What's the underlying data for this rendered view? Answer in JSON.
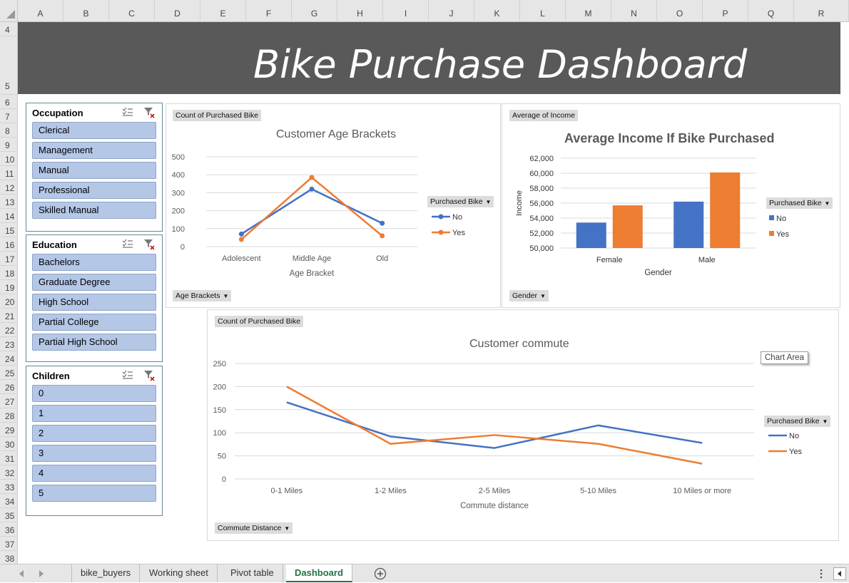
{
  "sheet": {
    "columns": [
      "A",
      "B",
      "C",
      "D",
      "E",
      "F",
      "G",
      "H",
      "I",
      "J",
      "K",
      "L",
      "M",
      "N",
      "O",
      "P",
      "Q",
      "R"
    ],
    "rows": [
      "4",
      "5",
      "6",
      "7",
      "8",
      "9",
      "10",
      "11",
      "12",
      "13",
      "14",
      "15",
      "16",
      "17",
      "18",
      "19",
      "20",
      "21",
      "22",
      "23",
      "24",
      "25",
      "26",
      "27",
      "28",
      "29",
      "30",
      "31",
      "32",
      "33",
      "34",
      "35",
      "36",
      "37",
      "38"
    ]
  },
  "dashboard": {
    "title": "Bike Purchase Dashboard",
    "header_bg": "#595959"
  },
  "slicers": [
    {
      "title": "Occupation",
      "items": [
        "Clerical",
        "Management",
        "Manual",
        "Professional",
        "Skilled Manual"
      ]
    },
    {
      "title": "Education",
      "items": [
        "Bachelors",
        "Graduate Degree",
        "High School",
        "Partial College",
        "Partial High School"
      ]
    },
    {
      "title": "Children",
      "items": [
        "0",
        "1",
        "2",
        "3",
        "4",
        "5"
      ]
    }
  ],
  "charts": {
    "age": {
      "value_button": "Count of Purchased Bike",
      "axis_button": "Age Brackets",
      "legend_button": "Purchased Bike",
      "legend": [
        "No",
        "Yes"
      ]
    },
    "income": {
      "value_button": "Average of Income",
      "axis_button": "Gender",
      "legend_button": "Purchased Bike",
      "legend": [
        "No",
        "Yes"
      ]
    },
    "commute": {
      "value_button": "Count of Purchased Bike",
      "axis_button": "Commute Distance",
      "legend_button": "Purchased Bike",
      "legend": [
        "No",
        "Yes"
      ],
      "tooltip": "Chart Area"
    }
  },
  "colors": {
    "no": "#4472c4",
    "yes": "#ed7d31",
    "slicer_item": "#b4c7e7"
  },
  "chart_data": [
    {
      "type": "line",
      "title": "Customer Age Brackets",
      "xlabel": "Age Bracket",
      "ylabel": "",
      "categories": [
        "Adolescent",
        "Middle Age",
        "Old"
      ],
      "series": [
        {
          "name": "No",
          "values": [
            70,
            320,
            130
          ]
        },
        {
          "name": "Yes",
          "values": [
            40,
            385,
            60
          ]
        }
      ],
      "ylim": [
        0,
        500
      ],
      "yticks": [
        "0",
        "100",
        "200",
        "300",
        "400",
        "500"
      ]
    },
    {
      "type": "bar",
      "title": "Average Income If Bike Purchased",
      "xlabel": "Gender",
      "ylabel": "Income",
      "categories": [
        "Female",
        "Male"
      ],
      "series": [
        {
          "name": "No",
          "values": [
            53400,
            56200
          ]
        },
        {
          "name": "Yes",
          "values": [
            55700,
            60100
          ]
        }
      ],
      "ylim": [
        50000,
        62000
      ],
      "yticks": [
        "50,000",
        "52,000",
        "54,000",
        "56,000",
        "58,000",
        "60,000",
        "62,000"
      ]
    },
    {
      "type": "line",
      "title": "Customer commute",
      "xlabel": "Commute distance",
      "ylabel": "",
      "categories": [
        "0-1 Miles",
        "1-2 Miles",
        "2-5 Miles",
        "5-10 Miles",
        "10 Miles or more"
      ],
      "series": [
        {
          "name": "No",
          "values": [
            166,
            92,
            67,
            116,
            78
          ]
        },
        {
          "name": "Yes",
          "values": [
            200,
            76,
            95,
            76,
            33
          ]
        }
      ],
      "ylim": [
        0,
        250
      ],
      "yticks": [
        "0",
        "50",
        "100",
        "150",
        "200",
        "250"
      ]
    }
  ],
  "tabs": {
    "items": [
      "bike_buyers",
      "Working sheet",
      "Pivot table",
      "Dashboard"
    ],
    "active": "Dashboard"
  }
}
